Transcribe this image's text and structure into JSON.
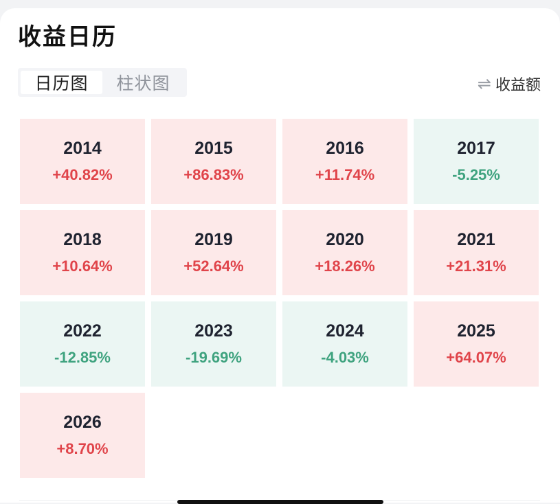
{
  "header": {
    "title": "收益日历"
  },
  "view_tabs": [
    {
      "label": "日历图",
      "active": true
    },
    {
      "label": "柱状图",
      "active": false
    }
  ],
  "toggle": {
    "icon": "swap-arrows-icon",
    "label": "收益额"
  },
  "colors": {
    "positive_text": "#e0444a",
    "positive_bg": "#fde9e9",
    "negative_text": "#3fa37f",
    "negative_bg": "#ebf6f3"
  },
  "years": [
    {
      "year": "2014",
      "return": "+40.82%",
      "sign": "pos"
    },
    {
      "year": "2015",
      "return": "+86.83%",
      "sign": "pos"
    },
    {
      "year": "2016",
      "return": "+11.74%",
      "sign": "pos"
    },
    {
      "year": "2017",
      "return": "-5.25%",
      "sign": "neg"
    },
    {
      "year": "2018",
      "return": "+10.64%",
      "sign": "pos"
    },
    {
      "year": "2019",
      "return": "+52.64%",
      "sign": "pos"
    },
    {
      "year": "2020",
      "return": "+18.26%",
      "sign": "pos"
    },
    {
      "year": "2021",
      "return": "+21.31%",
      "sign": "pos"
    },
    {
      "year": "2022",
      "return": "-12.85%",
      "sign": "neg"
    },
    {
      "year": "2023",
      "return": "-19.69%",
      "sign": "neg"
    },
    {
      "year": "2024",
      "return": "-4.03%",
      "sign": "neg"
    },
    {
      "year": "2025",
      "return": "+64.07%",
      "sign": "pos"
    },
    {
      "year": "2026",
      "return": "+8.70%",
      "sign": "pos"
    }
  ]
}
